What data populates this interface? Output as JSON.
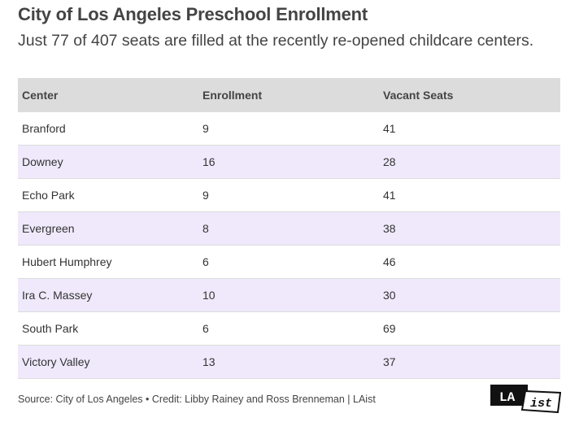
{
  "title": "City of Los Angeles Preschool Enrollment",
  "subtitle": "Just 77 of 407 seats are filled at the recently re-opened childcare centers.",
  "chart_data": {
    "type": "table",
    "columns": [
      "Center",
      "Enrollment",
      "Vacant Seats"
    ],
    "rows": [
      [
        "Branford",
        "9",
        "41"
      ],
      [
        "Downey",
        "16",
        "28"
      ],
      [
        "Echo Park",
        "9",
        "41"
      ],
      [
        "Evergreen",
        "8",
        "38"
      ],
      [
        "Hubert Humphrey",
        "6",
        "46"
      ],
      [
        "Ira C. Massey",
        "10",
        "30"
      ],
      [
        "South Park",
        "6",
        "69"
      ],
      [
        "Victory Valley",
        "13",
        "37"
      ]
    ]
  },
  "source": "Source: City of Los Angeles • Credit: Libby Rainey and Ross Brenneman | LAist",
  "logo": {
    "text_top": "LA",
    "text_bottom": "ist"
  },
  "colors": {
    "header_bg": "#dcdcdc",
    "alt_row_bg": "#efe9fb",
    "text": "#333333"
  }
}
